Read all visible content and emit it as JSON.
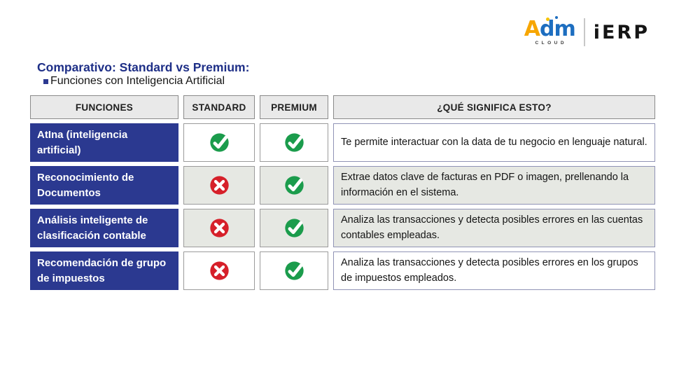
{
  "logo": {
    "brand_a": "A",
    "brand_rest": "dm",
    "sub": "CLOUD",
    "product": "iERP"
  },
  "header": {
    "title": "Comparativo: Standard vs Premium:",
    "subtitle": "Funciones con Inteligencia Artificial"
  },
  "table": {
    "columns": {
      "functions": "FUNCIONES",
      "standard": "STANDARD",
      "premium": "PREMIUM",
      "meaning": "¿QUÉ SIGNIFICA ESTO?"
    },
    "rows": [
      {
        "function": "AtIna (inteligencia artificial)",
        "standard": "check",
        "premium": "check",
        "description": " Te permite interactuar con la data de tu negocio en lenguaje natural."
      },
      {
        "function": "Reconocimiento de Documentos",
        "standard": "cross",
        "premium": "check",
        "description": "Extrae datos clave de facturas en PDF o imagen, prellenando la información en el sistema."
      },
      {
        "function": "Análisis inteligente de clasificación contable",
        "standard": "cross",
        "premium": "check",
        "description": "Analiza las transacciones y detecta posibles errores en las cuentas contables empleadas."
      },
      {
        "function": "Recomendación de grupo de impuestos",
        "standard": "cross",
        "premium": "check",
        "description": "Analiza las transacciones y detecta posibles errores en los grupos de impuestos empleados."
      }
    ]
  },
  "colors": {
    "accent_blue": "#2b3990",
    "title_blue": "#1e2f87",
    "check_green": "#1b9c4c",
    "cross_red": "#d6202a",
    "header_gray": "#e9e9e9",
    "shaded_row_gray": "#e6e8e3"
  },
  "icons": {
    "check": "check-icon",
    "cross": "cross-icon"
  }
}
